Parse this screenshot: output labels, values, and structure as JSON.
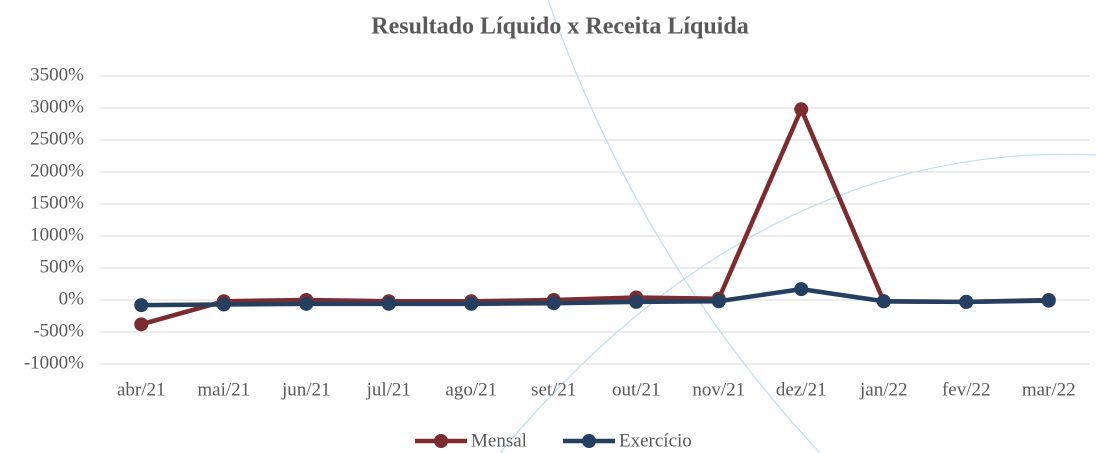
{
  "chart_data": {
    "type": "line",
    "title": "Resultado Líquido x Receita Líquida",
    "categories": [
      "abr/21",
      "mai/21",
      "jun/21",
      "jul/21",
      "ago/21",
      "set/21",
      "out/21",
      "nov/21",
      "dez/21",
      "jan/22",
      "fev/22",
      "mar/22"
    ],
    "series": [
      {
        "name": "Mensal",
        "color": "#7b2c2f",
        "values": [
          -380,
          -20,
          0,
          -20,
          -20,
          0,
          40,
          20,
          2980,
          -20,
          -30,
          0
        ]
      },
      {
        "name": "Exercício",
        "color": "#243f60",
        "values": [
          -80,
          -70,
          -60,
          -60,
          -60,
          -50,
          -30,
          -20,
          170,
          -20,
          -30,
          -10
        ]
      }
    ],
    "ylim": [
      -1000,
      3500
    ],
    "yticks": [
      {
        "value": -1000,
        "label": "-1000%"
      },
      {
        "value": -500,
        "label": "-500%"
      },
      {
        "value": 0,
        "label": "0%"
      },
      {
        "value": 500,
        "label": "500%"
      },
      {
        "value": 1000,
        "label": "1000%"
      },
      {
        "value": 1500,
        "label": "1500%"
      },
      {
        "value": 2000,
        "label": "2000%"
      },
      {
        "value": 2500,
        "label": "2500%"
      },
      {
        "value": 3000,
        "label": "3000%"
      },
      {
        "value": 3500,
        "label": "3500%"
      }
    ],
    "grid": true,
    "legend": "bottom"
  }
}
